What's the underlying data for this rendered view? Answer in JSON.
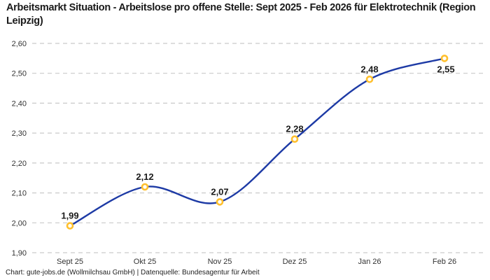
{
  "header": {
    "title": "Arbeitsmarkt Situation - Arbeitslose pro offene Stelle: Sept 2025 - Feb 2026 für Elektrotechnik (Region Leipzig)"
  },
  "footer": {
    "credit": "Chart: gute-jobs.de (Wollmilchsau GmbH) | Datenquelle: Bundesagentur für Arbeit"
  },
  "chart_data": {
    "type": "line",
    "title": "Arbeitsmarkt Situation - Arbeitslose pro offene Stelle: Sept 2025 - Feb 2026 für Elektrotechnik (Region Leipzig)",
    "series_name": "Arbeitslose pro offene Stelle",
    "categories": [
      "Sept 25",
      "Okt 25",
      "Nov 25",
      "Dez 25",
      "Jan 26",
      "Feb 26"
    ],
    "values": [
      1.99,
      2.12,
      2.07,
      2.28,
      2.48,
      2.55
    ],
    "point_labels": [
      "1,99",
      "2,12",
      "2,07",
      "2,28",
      "2,48",
      "2,55"
    ],
    "y_ticks": [
      "1,90",
      "2,00",
      "2,10",
      "2,20",
      "2,30",
      "2,40",
      "2,50",
      "2,60"
    ],
    "y_tick_values": [
      1.9,
      2.0,
      2.1,
      2.2,
      2.3,
      2.4,
      2.5,
      2.6
    ],
    "ylim": [
      1.9,
      2.6
    ],
    "xlabel": "",
    "ylabel": "",
    "grid": "horizontal-dashed",
    "legend": "none",
    "smooth": true,
    "colors": {
      "line": "#1d3aa5",
      "marker": "#ffc02e",
      "marker_fill": "#ffffff",
      "grid": "#c9c9c9",
      "tick_text": "#333333",
      "label_text": "#1a1a1a"
    }
  }
}
